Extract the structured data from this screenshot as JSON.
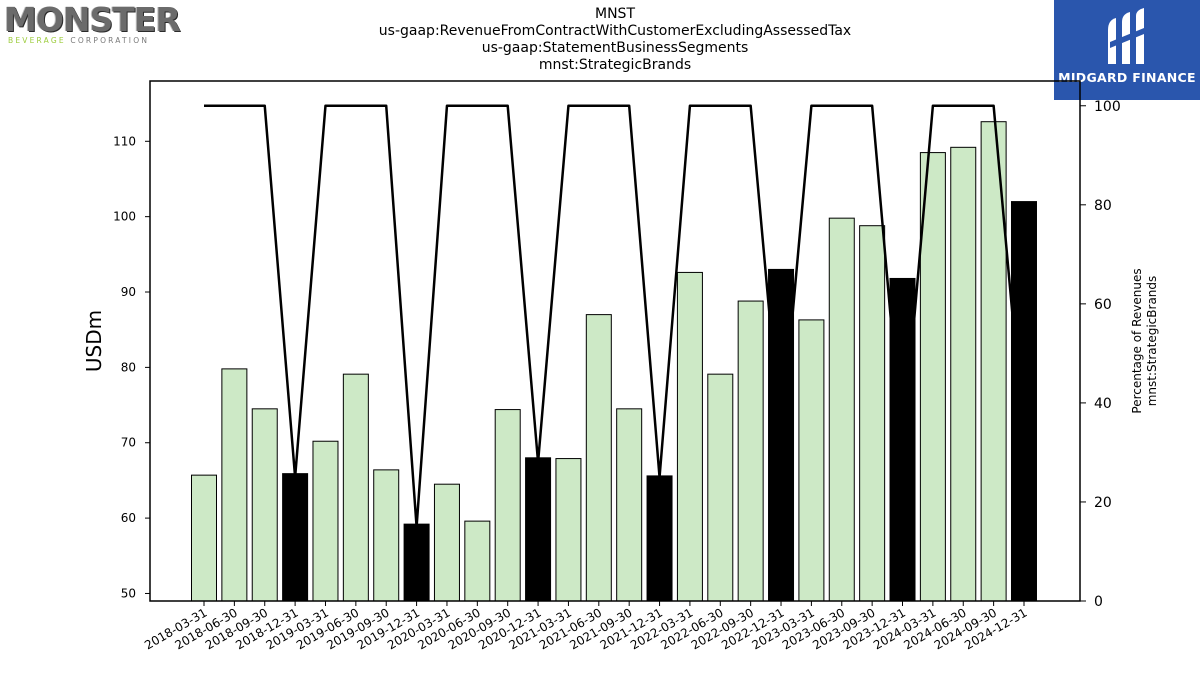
{
  "header": {
    "title_lines": [
      "MNST",
      "us-gaap:RevenueFromContractWithCustomerExcludingAssessedTax",
      "us-gaap:StatementBusinessSegments",
      "mnst:StrategicBrands"
    ]
  },
  "logos": {
    "left": {
      "name": "MONSTER",
      "subtitle_accent": "BEVERAGE",
      "subtitle_rest": " CORPORATION"
    },
    "right": {
      "name": "MIDGARD FINANCE",
      "background": "#2a56ad"
    }
  },
  "chart_data": {
    "type": "bar",
    "categories": [
      "2018-03-31",
      "2018-06-30",
      "2018-09-30",
      "2018-12-31",
      "2019-03-31",
      "2019-06-30",
      "2019-09-30",
      "2019-12-31",
      "2020-03-31",
      "2020-06-30",
      "2020-09-30",
      "2020-12-31",
      "2021-03-31",
      "2021-06-30",
      "2021-09-30",
      "2021-12-31",
      "2022-03-31",
      "2022-06-30",
      "2022-09-30",
      "2022-12-31",
      "2023-03-31",
      "2023-06-30",
      "2023-09-30",
      "2023-12-31",
      "2024-03-31",
      "2024-06-30",
      "2024-09-30",
      "2024-12-31"
    ],
    "values": [
      65.7,
      79.8,
      74.5,
      65.9,
      70.2,
      79.1,
      66.4,
      59.2,
      64.5,
      59.6,
      74.4,
      68.0,
      67.9,
      87.0,
      74.5,
      65.6,
      92.6,
      79.1,
      88.8,
      93.0,
      86.3,
      99.8,
      98.8,
      91.8,
      108.5,
      109.2,
      112.6,
      102.0
    ],
    "highlight_quarter": "12-31",
    "bar_color": "#cde9c6",
    "highlight_color": "#000000",
    "ylabel": "USDm",
    "ylim": [
      49,
      118
    ],
    "yticks": [
      50,
      60,
      70,
      80,
      90,
      100,
      110
    ],
    "line_series": {
      "values": [
        100,
        100,
        100,
        25,
        100,
        100,
        100,
        15,
        100,
        100,
        100,
        28,
        100,
        100,
        100,
        25,
        100,
        100,
        100,
        32,
        100,
        100,
        100,
        30,
        100,
        100,
        100,
        32
      ],
      "color": "#000000",
      "ylabel_lines": [
        "Percentage of Revenues",
        "mnst:StrategicBrands"
      ],
      "ylim": [
        0,
        105
      ],
      "yticks": [
        0,
        20,
        40,
        60,
        80,
        100
      ]
    },
    "grid": false,
    "legend": "none"
  }
}
